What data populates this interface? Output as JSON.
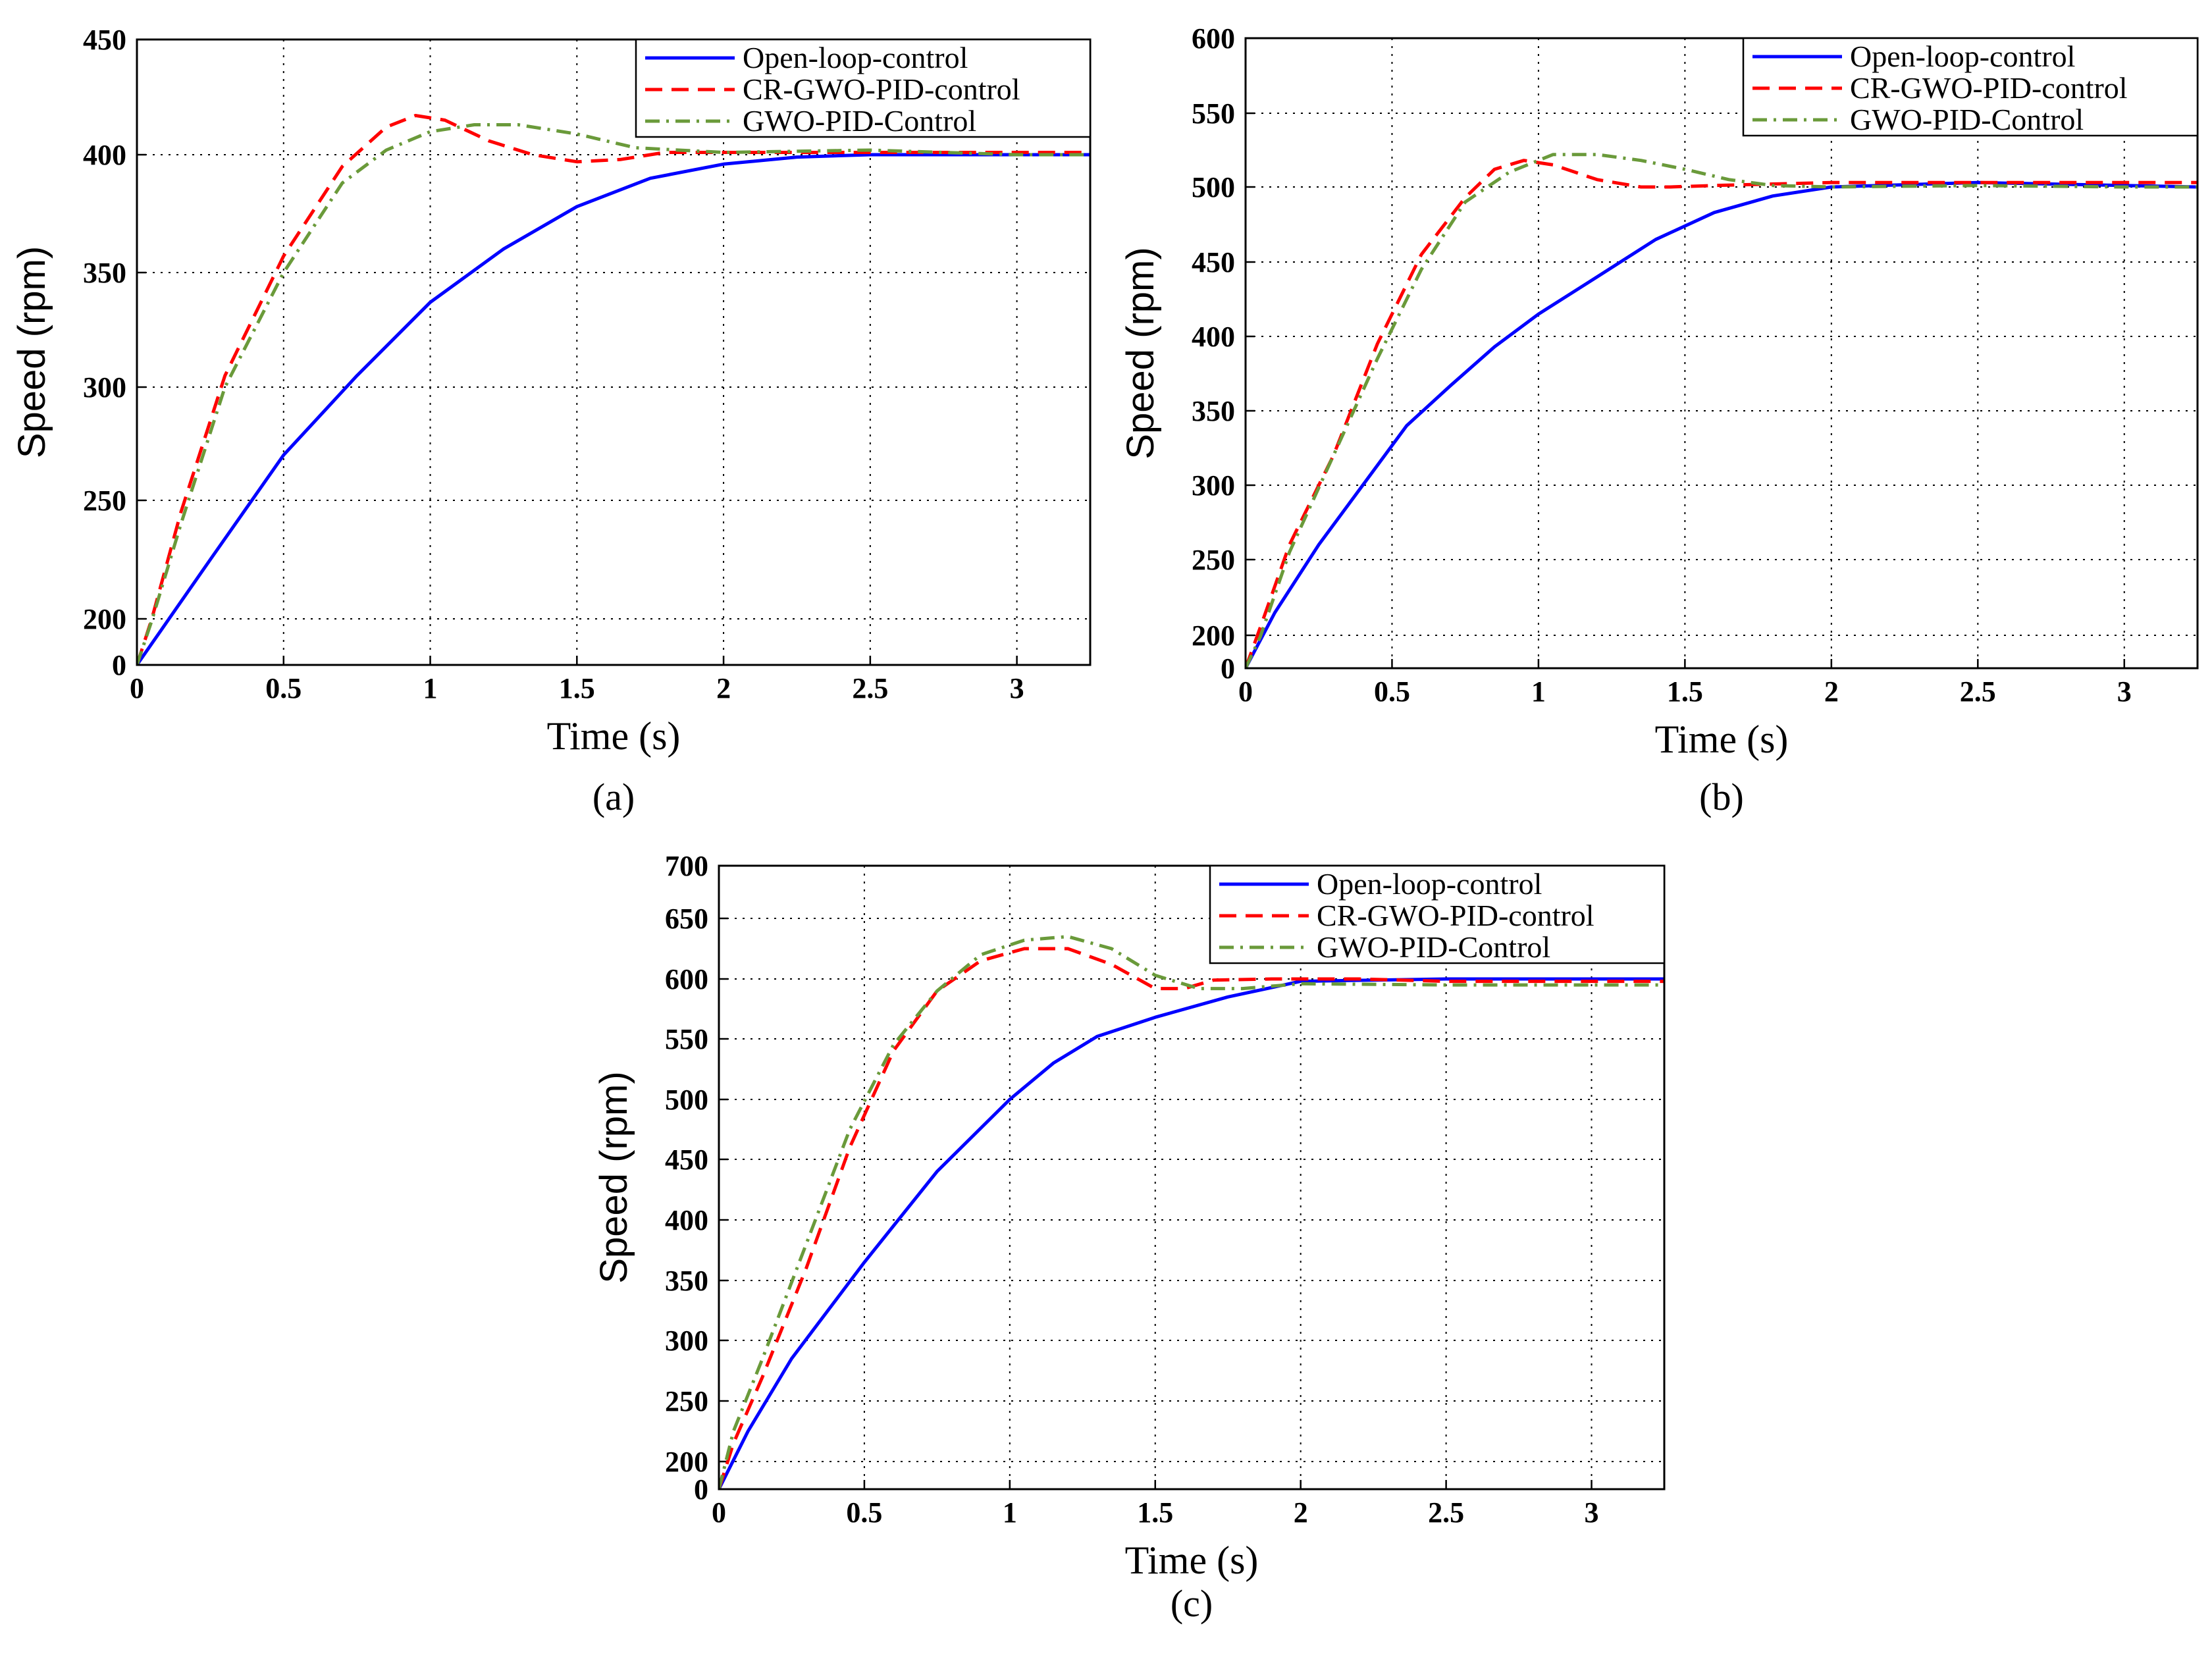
{
  "chart_data": [
    {
      "type": "line",
      "caption": "(a)",
      "xlabel": "Time (s)",
      "ylabel": "Speed (rpm)",
      "xlim": [
        0,
        3.25
      ],
      "xticks": [
        0,
        0.5,
        1,
        1.5,
        2,
        2.5,
        3
      ],
      "xtick_labels": [
        "0",
        "0.5",
        "1",
        "1.5",
        "2",
        "2.5",
        "3"
      ],
      "ytick_labels": [
        "0",
        "200",
        "250",
        "300",
        "350",
        "400",
        "450"
      ],
      "grid": true,
      "legend_position": "top-right",
      "series": [
        {
          "name": "Open-loop-control",
          "color": "#0000ff",
          "style": "solid",
          "x": [
            0,
            0.25,
            0.5,
            0.75,
            1.0,
            1.25,
            1.5,
            1.75,
            2.0,
            2.25,
            2.5,
            2.75,
            3.0,
            3.25
          ],
          "y": [
            0,
            225,
            270,
            305,
            337,
            360,
            378,
            390,
            396,
            399,
            400,
            400,
            400,
            400
          ]
        },
        {
          "name": "CR-GWO-PID-control",
          "color": "#ff0000",
          "style": "dashed",
          "x": [
            0,
            0.05,
            0.15,
            0.3,
            0.5,
            0.7,
            0.85,
            0.95,
            1.05,
            1.2,
            1.35,
            1.5,
            1.65,
            1.8,
            2.0,
            2.5,
            3.0,
            3.25
          ],
          "y": [
            0,
            197,
            245,
            305,
            357,
            395,
            412,
            417,
            415,
            406,
            400,
            397,
            398,
            401,
            401,
            401,
            401,
            401
          ]
        },
        {
          "name": "GWO-PID-Control",
          "color": "#6a9a3a",
          "style": "dashdot",
          "x": [
            0,
            0.05,
            0.15,
            0.3,
            0.5,
            0.7,
            0.85,
            1.0,
            1.15,
            1.3,
            1.5,
            1.7,
            2.0,
            2.5,
            3.0,
            3.25
          ],
          "y": [
            0,
            190,
            240,
            300,
            350,
            388,
            402,
            410,
            413,
            413,
            409,
            403,
            401,
            402,
            400,
            400
          ]
        }
      ]
    },
    {
      "type": "line",
      "caption": "(b)",
      "xlabel": "Time (s)",
      "ylabel": "Speed (rpm)",
      "xlim": [
        0,
        3.25
      ],
      "xticks": [
        0,
        0.5,
        1,
        1.5,
        2,
        2.5,
        3
      ],
      "xtick_labels": [
        "0",
        "0.5",
        "1",
        "1.5",
        "2",
        "2.5",
        "3"
      ],
      "ytick_labels": [
        "0",
        "200",
        "250",
        "300",
        "350",
        "400",
        "450",
        "500",
        "550",
        "600"
      ],
      "grid": true,
      "legend_position": "top-right",
      "series": [
        {
          "name": "Open-loop-control",
          "color": "#0000ff",
          "style": "solid",
          "x": [
            0,
            0.1,
            0.25,
            0.4,
            0.55,
            0.7,
            0.85,
            1.0,
            1.2,
            1.4,
            1.6,
            1.8,
            2.0,
            2.5,
            3.0,
            3.25
          ],
          "y": [
            0,
            215,
            260,
            300,
            340,
            367,
            393,
            415,
            440,
            465,
            483,
            494,
            500,
            503,
            501,
            500
          ]
        },
        {
          "name": "CR-GWO-PID-control",
          "color": "#ff0000",
          "style": "dashed",
          "x": [
            0,
            0.05,
            0.15,
            0.3,
            0.45,
            0.6,
            0.75,
            0.85,
            0.95,
            1.05,
            1.2,
            1.35,
            1.45,
            1.6,
            1.8,
            2.0,
            2.5,
            3.0,
            3.25
          ],
          "y": [
            0,
            205,
            260,
            320,
            395,
            455,
            493,
            512,
            518,
            515,
            505,
            500,
            500,
            501,
            502,
            503,
            503,
            503,
            503
          ]
        },
        {
          "name": "GWO-PID-Control",
          "color": "#6a9a3a",
          "style": "dashdot",
          "x": [
            0,
            0.05,
            0.15,
            0.3,
            0.45,
            0.6,
            0.75,
            0.9,
            1.05,
            1.2,
            1.35,
            1.5,
            1.65,
            1.8,
            2.0,
            2.5,
            3.0,
            3.25
          ],
          "y": [
            0,
            190,
            255,
            320,
            385,
            445,
            490,
            510,
            522,
            522,
            518,
            512,
            505,
            501,
            500,
            501,
            500,
            500
          ]
        }
      ]
    },
    {
      "type": "line",
      "caption": "(c)",
      "xlabel": "Time (s)",
      "ylabel": "Speed (rpm)",
      "xlim": [
        0,
        3.25
      ],
      "xticks": [
        0,
        0.5,
        1,
        1.5,
        2,
        2.5,
        3
      ],
      "xtick_labels": [
        "0",
        "0.5",
        "1",
        "1.5",
        "2",
        "2.5",
        "3"
      ],
      "ytick_labels": [
        "0",
        "200",
        "250",
        "300",
        "350",
        "400",
        "450",
        "500",
        "550",
        "600",
        "650",
        "700"
      ],
      "grid": true,
      "legend_position": "top-right",
      "series": [
        {
          "name": "Open-loop-control",
          "color": "#0000ff",
          "style": "solid",
          "x": [
            0,
            0.1,
            0.25,
            0.5,
            0.75,
            1.0,
            1.15,
            1.3,
            1.5,
            1.75,
            2.0,
            2.5,
            3.0,
            3.25
          ],
          "y": [
            0,
            225,
            285,
            365,
            440,
            500,
            530,
            552,
            568,
            585,
            598,
            600,
            600,
            600
          ]
        },
        {
          "name": "CR-GWO-PID-control",
          "color": "#ff0000",
          "style": "dashed",
          "x": [
            0,
            0.05,
            0.15,
            0.3,
            0.45,
            0.6,
            0.75,
            0.9,
            1.05,
            1.2,
            1.35,
            1.5,
            1.6,
            1.7,
            1.9,
            2.2,
            2.5,
            3.0,
            3.25
          ],
          "y": [
            0,
            215,
            270,
            360,
            460,
            540,
            590,
            615,
            625,
            625,
            612,
            592,
            592,
            599,
            600,
            600,
            598,
            598,
            598
          ]
        },
        {
          "name": "GWO-PID-Control",
          "color": "#6a9a3a",
          "style": "dashdot",
          "x": [
            0,
            0.05,
            0.15,
            0.3,
            0.45,
            0.6,
            0.75,
            0.9,
            1.05,
            1.2,
            1.35,
            1.5,
            1.65,
            1.8,
            2.0,
            2.5,
            3.0,
            3.25
          ],
          "y": [
            0,
            225,
            285,
            380,
            475,
            545,
            590,
            620,
            632,
            635,
            625,
            603,
            592,
            592,
            596,
            595,
            595,
            595
          ]
        }
      ]
    }
  ]
}
